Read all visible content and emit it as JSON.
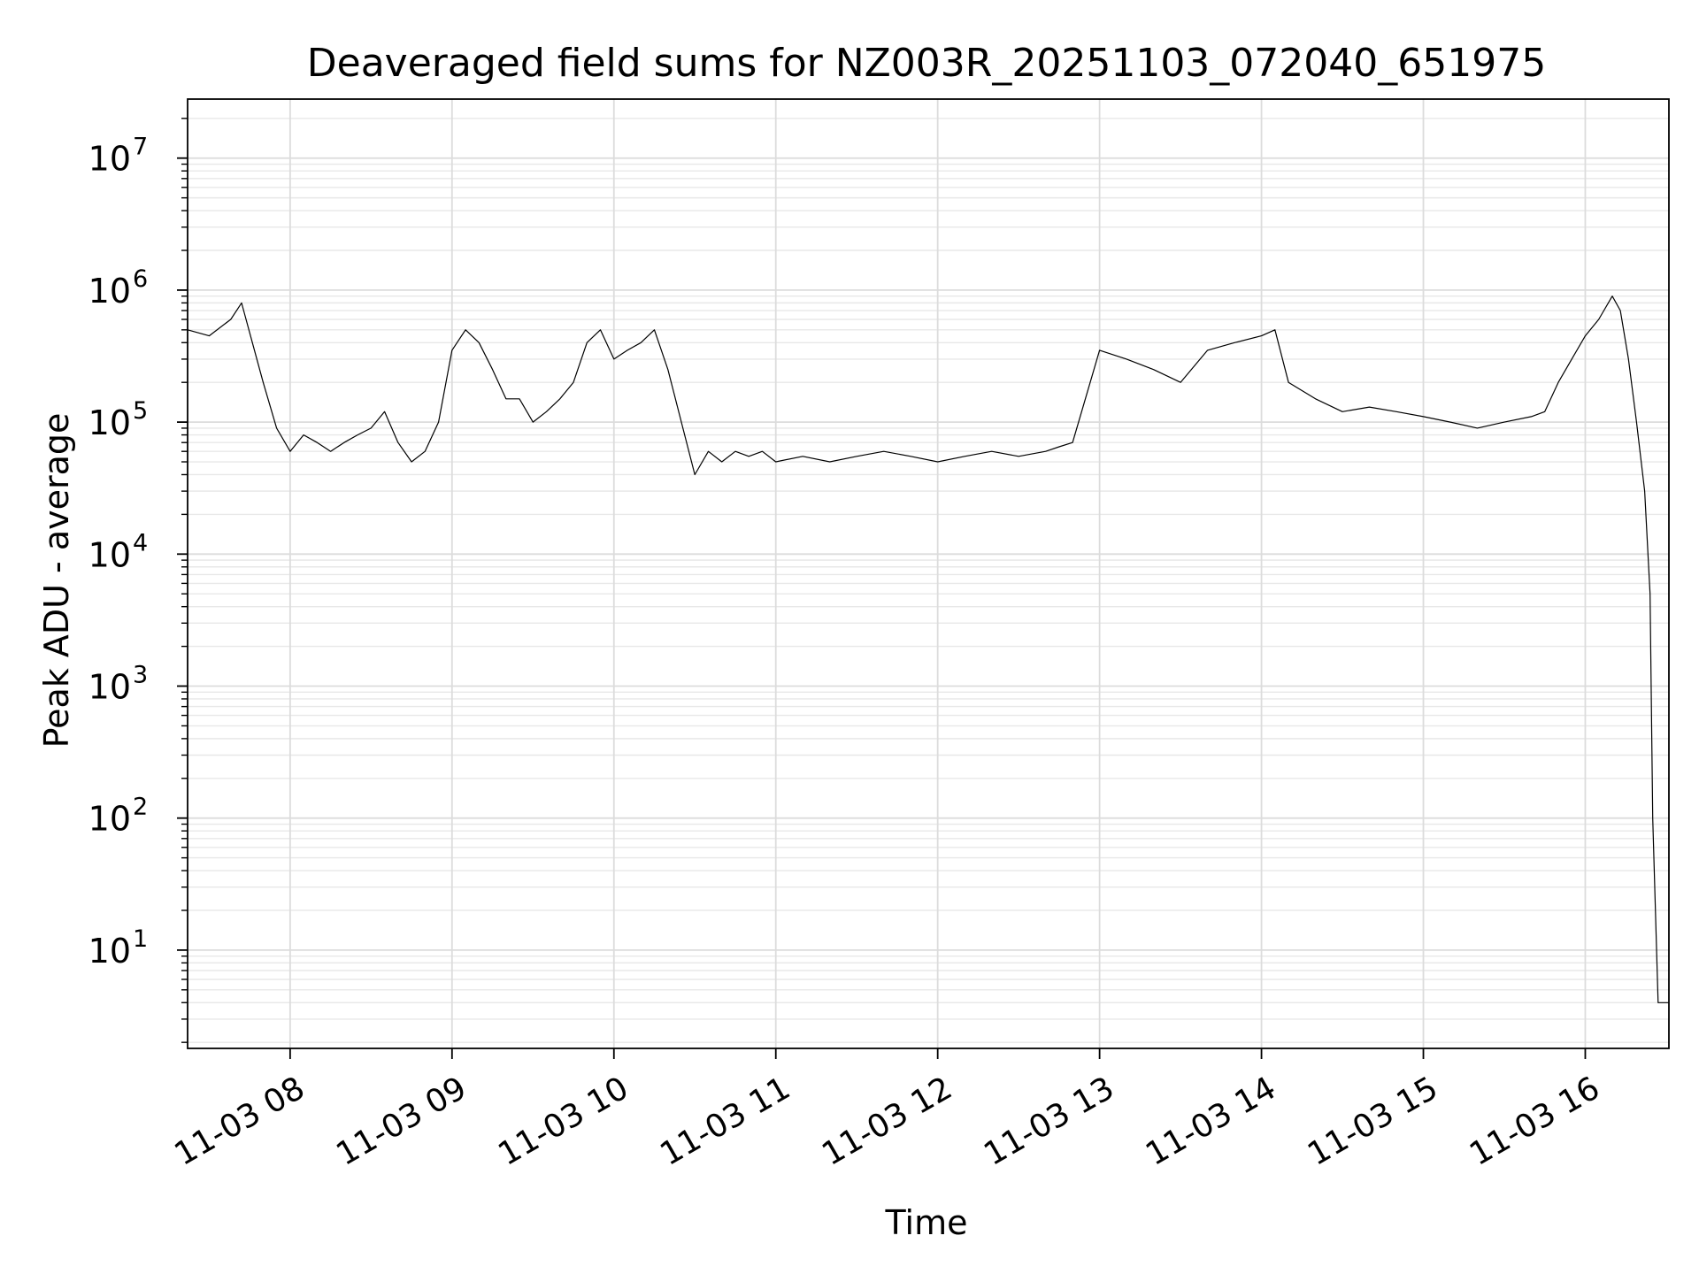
{
  "chart_data": {
    "type": "line",
    "title": "Deaveraged field sums for NZ003R_20251103_072040_651975",
    "xlabel": "Time",
    "ylabel": "Peak ADU - average",
    "yscale": "log",
    "ylim": [
      1.8,
      28000000
    ],
    "xlim": [
      "2025-11-03 07:22",
      "2025-11-03 16:31"
    ],
    "grid": true,
    "x_ticks": [
      "11-03 08",
      "11-03 09",
      "11-03 10",
      "11-03 11",
      "11-03 12",
      "11-03 13",
      "11-03 14",
      "11-03 15",
      "11-03 16"
    ],
    "y_ticks": [
      {
        "base": "10",
        "exp": "1",
        "value": 10
      },
      {
        "base": "10",
        "exp": "2",
        "value": 100
      },
      {
        "base": "10",
        "exp": "3",
        "value": 1000
      },
      {
        "base": "10",
        "exp": "4",
        "value": 10000
      },
      {
        "base": "10",
        "exp": "5",
        "value": 100000
      },
      {
        "base": "10",
        "exp": "6",
        "value": 1000000
      },
      {
        "base": "10",
        "exp": "7",
        "value": 10000000
      }
    ],
    "line_color": "#000000",
    "series": [
      {
        "x": [
          "2025-11-03 07:22",
          "2025-11-03 07:30",
          "2025-11-03 07:38",
          "2025-11-03 07:42",
          "2025-11-03 07:46",
          "2025-11-03 07:50",
          "2025-11-03 07:55",
          "2025-11-03 08:00",
          "2025-11-03 08:05",
          "2025-11-03 08:10",
          "2025-11-03 08:15",
          "2025-11-03 08:20",
          "2025-11-03 08:25",
          "2025-11-03 08:30",
          "2025-11-03 08:35",
          "2025-11-03 08:40",
          "2025-11-03 08:45",
          "2025-11-03 08:50",
          "2025-11-03 08:55",
          "2025-11-03 09:00",
          "2025-11-03 09:05",
          "2025-11-03 09:10",
          "2025-11-03 09:15",
          "2025-11-03 09:20",
          "2025-11-03 09:25",
          "2025-11-03 09:30",
          "2025-11-03 09:35",
          "2025-11-03 09:40",
          "2025-11-03 09:45",
          "2025-11-03 09:50",
          "2025-11-03 09:55",
          "2025-11-03 10:00",
          "2025-11-03 10:05",
          "2025-11-03 10:10",
          "2025-11-03 10:15",
          "2025-11-03 10:20",
          "2025-11-03 10:25",
          "2025-11-03 10:30",
          "2025-11-03 10:35",
          "2025-11-03 10:40",
          "2025-11-03 10:45",
          "2025-11-03 10:50",
          "2025-11-03 10:55",
          "2025-11-03 11:00",
          "2025-11-03 11:10",
          "2025-11-03 11:20",
          "2025-11-03 11:30",
          "2025-11-03 11:40",
          "2025-11-03 11:50",
          "2025-11-03 12:00",
          "2025-11-03 12:10",
          "2025-11-03 12:20",
          "2025-11-03 12:30",
          "2025-11-03 12:40",
          "2025-11-03 12:45",
          "2025-11-03 12:50",
          "2025-11-03 13:00",
          "2025-11-03 13:10",
          "2025-11-03 13:20",
          "2025-11-03 13:30",
          "2025-11-03 13:40",
          "2025-11-03 13:50",
          "2025-11-03 14:00",
          "2025-11-03 14:05",
          "2025-11-03 14:10",
          "2025-11-03 14:20",
          "2025-11-03 14:30",
          "2025-11-03 14:40",
          "2025-11-03 14:50",
          "2025-11-03 15:00",
          "2025-11-03 15:10",
          "2025-11-03 15:20",
          "2025-11-03 15:30",
          "2025-11-03 15:40",
          "2025-11-03 15:45",
          "2025-11-03 15:50",
          "2025-11-03 15:55",
          "2025-11-03 16:00",
          "2025-11-03 16:05",
          "2025-11-03 16:10",
          "2025-11-03 16:13",
          "2025-11-03 16:16",
          "2025-11-03 16:19",
          "2025-11-03 16:22",
          "2025-11-03 16:24",
          "2025-11-03 16:25",
          "2025-11-03 16:27",
          "2025-11-03 16:28",
          "2025-11-03 16:31"
        ],
        "values": [
          500000,
          450000,
          600000,
          800000,
          400000,
          200000,
          90000,
          60000,
          80000,
          70000,
          60000,
          70000,
          80000,
          90000,
          120000,
          70000,
          50000,
          60000,
          100000,
          350000,
          500000,
          400000,
          250000,
          150000,
          150000,
          100000,
          120000,
          150000,
          200000,
          400000,
          500000,
          300000,
          350000,
          400000,
          500000,
          250000,
          100000,
          40000,
          60000,
          50000,
          60000,
          55000,
          60000,
          50000,
          55000,
          50000,
          55000,
          60000,
          55000,
          50000,
          55000,
          60000,
          55000,
          60000,
          65000,
          70000,
          350000,
          300000,
          250000,
          200000,
          350000,
          400000,
          450000,
          500000,
          200000,
          150000,
          120000,
          130000,
          120000,
          110000,
          100000,
          90000,
          100000,
          110000,
          120000,
          200000,
          300000,
          450000,
          600000,
          900000,
          700000,
          300000,
          100000,
          30000,
          5000,
          100,
          4,
          4,
          4
        ]
      }
    ]
  }
}
